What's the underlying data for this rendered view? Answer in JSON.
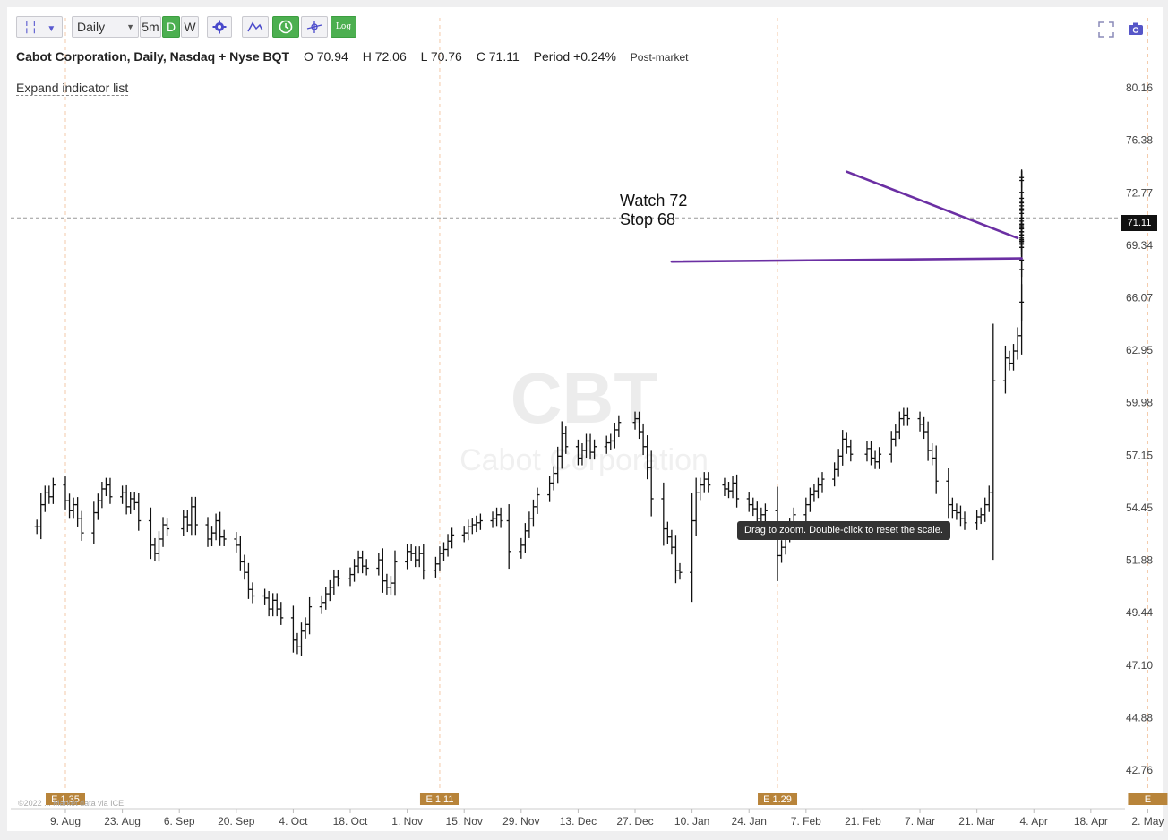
{
  "toolbar": {
    "chart_style_icon": "bar-style-icon",
    "interval_value": "Daily",
    "buttons": [
      "5m",
      "D",
      "W"
    ],
    "settings_icon": "gear-icon",
    "tools": [
      "draw-line-icon",
      "clock-icon",
      "crosshair-icon"
    ],
    "log_label": "Log",
    "fullscreen_icon": "fullscreen-icon",
    "camera_icon": "camera-icon"
  },
  "info": {
    "name": "Cabot Corporation, Daily, Nasdaq + Nyse BQT",
    "open_label": "O",
    "open": "70.94",
    "high_label": "H",
    "high": "72.06",
    "low_label": "L",
    "low": "70.76",
    "close_label": "C",
    "close": "71.11",
    "period_label": "Period",
    "period": "+0.24%",
    "session": "Post-market"
  },
  "expand_label": "Expand indicator list",
  "tooltip": "Drag to zoom. Double-click to reset the scale.",
  "annotation": {
    "line1": "Watch 72",
    "line2": "Stop 68"
  },
  "watermark": {
    "symbol": "CBT",
    "company": "Cabot Corporation"
  },
  "copyright": "©2022 ... Market data via ICE.",
  "colors": {
    "trendline": "#6b2fa3",
    "earnings": "#b8843a",
    "bars": "#111111"
  },
  "chart_data": {
    "type": "ohlc",
    "y_ticks": [
      "80.16",
      "76.38",
      "72.77",
      "69.34",
      "66.07",
      "62.95",
      "59.98",
      "57.15",
      "54.45",
      "51.88",
      "49.44",
      "47.10",
      "44.88",
      "42.76"
    ],
    "x_ticks": [
      "9. Aug",
      "23. Aug",
      "6. Sep",
      "20. Sep",
      "4. Oct",
      "18. Oct",
      "1. Nov",
      "15. Nov",
      "29. Nov",
      "13. Dec",
      "27. Dec",
      "10. Jan",
      "24. Jan",
      "7. Feb",
      "21. Feb",
      "7. Mar",
      "21. Mar",
      "4. Apr",
      "18. Apr",
      "2. May"
    ],
    "last_price": "71.11",
    "log_scale": true,
    "earnings": [
      {
        "date": "2021-08-09",
        "label": "E 1.35"
      },
      {
        "date": "2021-11-09",
        "label": "E 1.11"
      },
      {
        "date": "2022-01-31",
        "label": "E 1.29"
      },
      {
        "date": "2022-05-02",
        "label": "E"
      }
    ],
    "trendlines": [
      {
        "from": [
          "2022-02-17",
          74.2
        ],
        "to": [
          "2022-03-31",
          69.8
        ]
      },
      {
        "from": [
          "2022-01-05",
          68.3
        ],
        "to": [
          "2022-04-01",
          68.5
        ]
      }
    ],
    "closes": [
      53.5,
      54.6,
      55.2,
      55.0,
      55.6,
      54.8,
      54.3,
      54.6,
      53.9,
      53.2,
      54.2,
      54.8,
      55.4,
      55.6,
      55.0,
      55.2,
      54.5,
      54.9,
      54.7,
      53.8,
      52.6,
      52.2,
      52.9,
      53.6,
      53.4,
      54.0,
      53.6,
      54.5,
      53.6,
      52.9,
      53.2,
      53.8,
      53.0,
      52.9,
      52.6,
      51.8,
      51.3,
      50.5,
      50.2,
      50.1,
      49.6,
      50.0,
      49.6,
      49.2,
      48.2,
      47.9,
      48.6,
      48.9,
      49.7,
      49.9,
      50.3,
      50.6,
      51.1,
      51.0,
      51.2,
      51.6,
      52.0,
      51.6,
      51.5,
      51.9,
      50.9,
      50.6,
      50.8,
      51.8,
      52.3,
      52.2,
      51.9,
      52.2,
      51.4,
      51.7,
      52.2,
      52.4,
      52.8,
      53.1,
      53.2,
      53.5,
      53.6,
      53.7,
      53.8,
      53.9,
      54.1,
      53.8,
      52.3,
      52.6,
      53.3,
      53.9,
      54.5,
      55.1,
      55.7,
      56.2,
      57.1,
      58.3,
      57.6,
      57.0,
      57.4,
      57.9,
      57.3,
      57.6,
      57.8,
      57.9,
      58.5,
      58.9,
      59.1,
      58.4,
      57.6,
      56.5,
      54.9,
      53.4,
      53.0,
      52.5,
      51.4,
      51.3,
      53.8,
      55.2,
      55.6,
      55.9,
      55.6,
      55.4,
      55.3,
      55.7,
      54.9,
      54.6,
      54.4,
      53.9,
      54.1,
      54.3,
      52.1,
      52.5,
      53.1,
      53.6,
      54.1,
      54.6,
      55.1,
      55.3,
      55.6,
      55.9,
      56.4,
      57.1,
      58.0,
      57.6,
      57.2,
      57.5,
      57.0,
      56.8,
      57.2,
      58.0,
      58.4,
      59.1,
      59.3,
      59.1,
      58.8,
      58.4,
      57.4,
      57.0,
      55.8,
      54.6,
      54.3,
      54.2,
      53.9,
      53.7,
      54.0,
      54.1,
      54.6,
      55.2,
      61.2,
      62.5,
      62.2,
      62.9,
      63.8,
      65.8,
      67.8,
      68.4,
      69.6,
      69.8,
      69.4,
      70.2,
      72.8,
      73.8,
      73.6,
      72.4,
      71.7,
      71.9,
      72.2,
      72.1,
      71.6,
      71.1,
      71.7,
      71.4,
      70.9,
      70.2,
      69.2,
      69.6,
      69.5,
      70.0,
      70.4,
      70.7,
      70.4,
      70.2,
      70.5,
      70.7,
      69.2,
      69.6,
      69.7,
      70.0,
      70.5,
      70.6,
      71.1
    ]
  }
}
